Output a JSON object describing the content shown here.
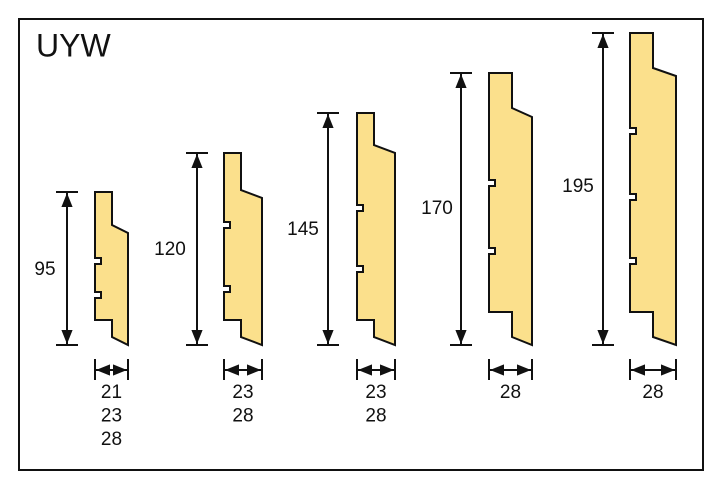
{
  "title": "UYW",
  "profiles": [
    {
      "height": "95",
      "widths": [
        "21",
        "23",
        "28"
      ]
    },
    {
      "height": "120",
      "widths": [
        "23",
        "28"
      ]
    },
    {
      "height": "145",
      "widths": [
        "23",
        "28"
      ]
    },
    {
      "height": "170",
      "widths": [
        "28"
      ]
    },
    {
      "height": "195",
      "widths": [
        "28"
      ]
    }
  ]
}
